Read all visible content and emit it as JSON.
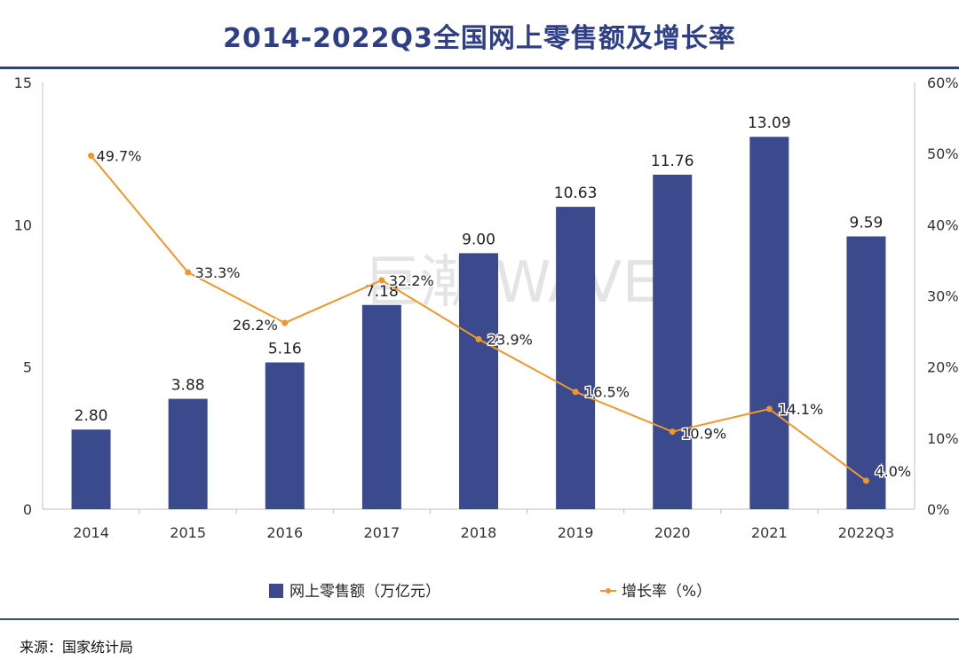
{
  "title": "2014-2022Q3全国网上零售额及增长率",
  "source": "来源：国家统计局",
  "watermark": "巨潮 WAVE",
  "colors": {
    "bar": "#3b4a8c",
    "line": "#f0962e",
    "title": "#2f3f86"
  },
  "chart_data": {
    "type": "bar",
    "categories": [
      "2014",
      "2015",
      "2016",
      "2017",
      "2018",
      "2019",
      "2020",
      "2021",
      "2022Q3"
    ],
    "series": [
      {
        "name": "网上零售额（万亿元）",
        "type": "bar",
        "axis": "left",
        "values": [
          2.8,
          3.88,
          5.16,
          7.18,
          9.0,
          10.63,
          11.76,
          13.09,
          9.59
        ],
        "labels": [
          "2.80",
          "3.88",
          "5.16",
          "7.18",
          "9.00",
          "10.63",
          "11.76",
          "13.09",
          "9.59"
        ]
      },
      {
        "name": "增长率（%）",
        "type": "line",
        "axis": "right",
        "values": [
          49.7,
          33.3,
          26.2,
          32.2,
          23.9,
          16.5,
          10.9,
          14.1,
          4.0
        ],
        "labels": [
          "49.7%",
          "33.3%",
          "26.2%",
          "32.2%",
          "23.9%",
          "16.5%",
          "10.9%",
          "14.1%",
          "4.0%"
        ]
      }
    ],
    "y_left": {
      "ylim": [
        0,
        15
      ],
      "ticks": [
        "0",
        "5",
        "10",
        "15"
      ]
    },
    "y_right": {
      "ylim": [
        0,
        60
      ],
      "ticks": [
        "0%",
        "10%",
        "20%",
        "30%",
        "40%",
        "50%",
        "60%"
      ]
    },
    "grid": false,
    "legend_position": "bottom"
  }
}
